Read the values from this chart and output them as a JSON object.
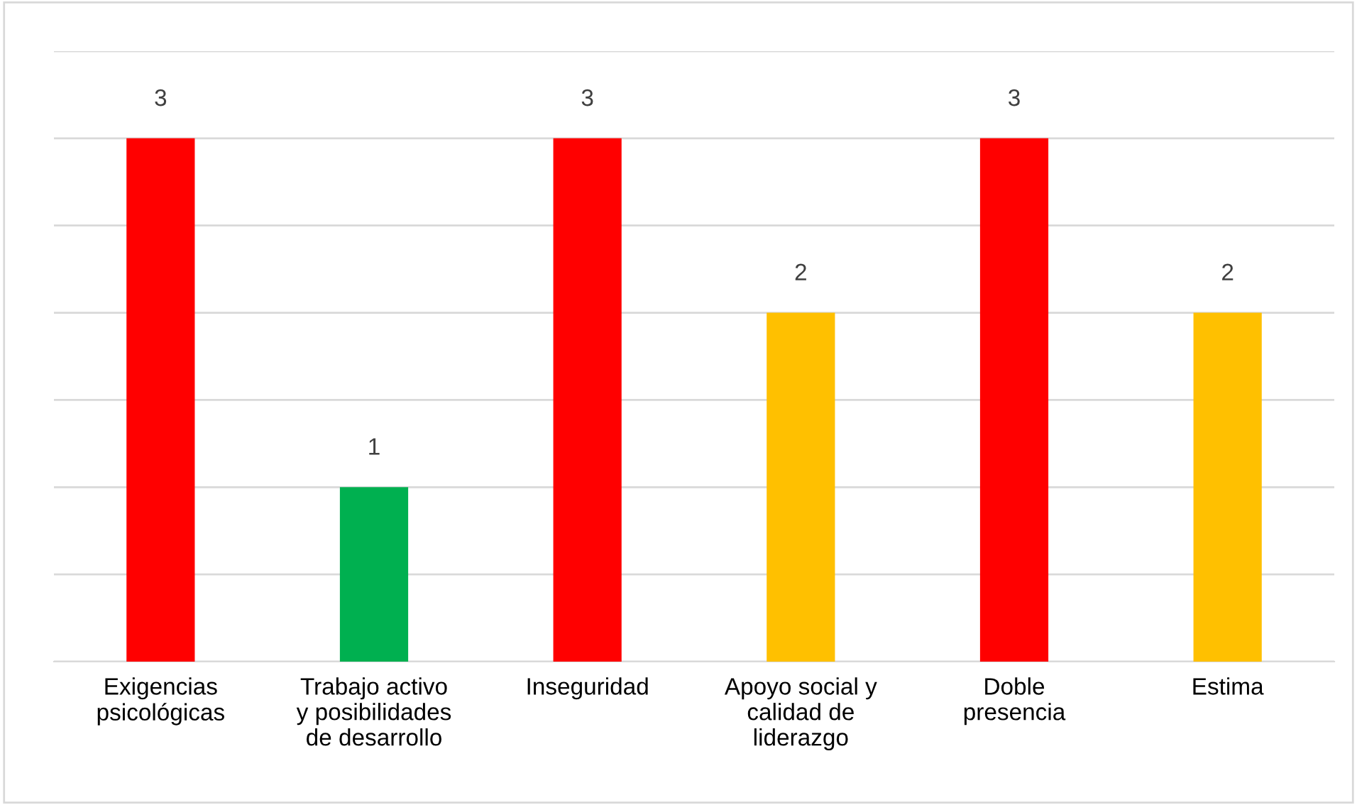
{
  "chart_data": {
    "type": "bar",
    "categories": [
      "Exigencias\npsicológicas",
      "Trabajo activo\ny posibilidades\nde desarrollo",
      "Inseguridad",
      "Apoyo social y\ncalidad de\nliderazgo",
      "Doble\npresencia",
      "Estima"
    ],
    "values": [
      3,
      1,
      3,
      2,
      3,
      2
    ],
    "colors": [
      "#ff0000",
      "#00b050",
      "#ff0000",
      "#ffc000",
      "#ff0000",
      "#ffc000"
    ],
    "ylim": [
      0,
      3.5
    ],
    "yticks": [
      {
        "value": 0,
        "label": null
      },
      {
        "value": 0.5,
        "label": null
      },
      {
        "value": 1,
        "label": null
      },
      {
        "value": 1.5,
        "label": null
      },
      {
        "value": 2,
        "label": null
      },
      {
        "value": 2.5,
        "label": null
      },
      {
        "value": 3,
        "label": null
      },
      {
        "value": 3.5,
        "label": null
      }
    ],
    "tick_labels": "x",
    "grid": "y",
    "data_labels": true,
    "legend": false
  }
}
